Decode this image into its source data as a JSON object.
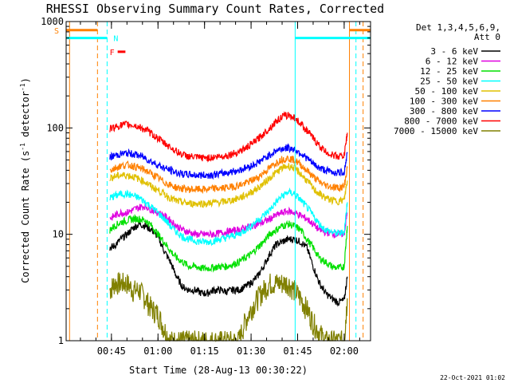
{
  "chart_data": {
    "type": "line",
    "title": "RHESSI Observing Summary Count Rates, Corrected",
    "xlabel": "Start Time (28-Aug-13 00:30:22)",
    "ylabel": "Corrected Count Rate (s⁻¹ detector⁻¹)",
    "ylabel_main": "Corrected Count Rate (s",
    "ylabel_sup1": "-1",
    "ylabel_mid": " detector",
    "ylabel_sup2": "-1",
    "ylabel_end": ")",
    "y_scale": "log",
    "ylim": [
      1,
      1000
    ],
    "xlim_minutes": [
      30.4,
      128.5
    ],
    "x_ticks": [
      {
        "label": "00:45",
        "minutes": 45
      },
      {
        "label": "01:00",
        "minutes": 60
      },
      {
        "label": "01:15",
        "minutes": 75
      },
      {
        "label": "01:30",
        "minutes": 90
      },
      {
        "label": "01:45",
        "minutes": 105
      },
      {
        "label": "02:00",
        "minutes": 120
      }
    ],
    "y_ticks": [
      {
        "label": "1",
        "value": 1
      },
      {
        "label": "10",
        "value": 10
      },
      {
        "label": "100",
        "value": 100
      },
      {
        "label": "1000",
        "value": 1000
      }
    ],
    "legend_header": [
      "Det 1,3,4,5,6,9,",
      "Att 0"
    ],
    "legend_position": "right",
    "series": [
      {
        "name": "3 - 6 keV",
        "color": "#000000",
        "x": [
          44.5,
          46,
          48,
          50,
          52,
          54,
          56,
          58,
          60,
          62,
          64,
          66,
          68,
          70,
          72,
          74,
          76,
          78,
          80,
          82,
          84,
          86,
          88,
          90,
          92,
          94,
          96,
          98,
          100,
          102,
          104,
          106,
          108,
          110,
          112,
          114,
          116,
          118,
          120,
          121
        ],
        "y": [
          7.5,
          7.8,
          9,
          10,
          11.5,
          12.5,
          12,
          11,
          9.5,
          7,
          5.5,
          4,
          3.2,
          3,
          3,
          2.8,
          2.8,
          3,
          3,
          2.9,
          3,
          3,
          3.2,
          3.5,
          4,
          5,
          6.5,
          8,
          8.5,
          9,
          9,
          8.5,
          7.5,
          5,
          3.5,
          2.8,
          2.5,
          2.3,
          2.4,
          4
        ]
      },
      {
        "name": "6 - 12 keV",
        "color": "#e000e0",
        "x": [
          44.5,
          46,
          48,
          50,
          52,
          54,
          56,
          58,
          60,
          62,
          64,
          66,
          68,
          70,
          72,
          74,
          76,
          78,
          80,
          82,
          84,
          86,
          88,
          90,
          92,
          94,
          96,
          98,
          100,
          102,
          104,
          106,
          108,
          110,
          112,
          114,
          116,
          118,
          120,
          121
        ],
        "y": [
          14,
          15,
          16,
          16,
          17,
          18,
          18.5,
          17,
          16,
          15,
          13.5,
          12,
          11,
          10.5,
          10,
          10,
          10,
          10,
          10.3,
          10.5,
          10.8,
          11,
          11.5,
          12,
          12.5,
          13,
          14,
          15,
          16,
          16.5,
          16,
          15,
          14,
          12.5,
          11,
          10.5,
          10.2,
          10,
          10.2,
          16
        ]
      },
      {
        "name": "12 - 25 keV",
        "color": "#00e000",
        "x": [
          44.5,
          46,
          48,
          50,
          52,
          54,
          56,
          58,
          60,
          62,
          64,
          66,
          68,
          70,
          72,
          74,
          76,
          78,
          80,
          82,
          84,
          86,
          88,
          90,
          92,
          94,
          96,
          98,
          100,
          102,
          104,
          106,
          108,
          110,
          112,
          114,
          116,
          118,
          120,
          121
        ],
        "y": [
          11,
          12,
          13,
          13.5,
          14,
          14,
          13.5,
          12,
          10,
          8.5,
          7,
          6,
          5.5,
          5,
          5,
          4.8,
          4.8,
          4.9,
          5,
          5,
          5.2,
          5.5,
          6,
          6.5,
          7.5,
          8.5,
          10,
          11,
          12,
          12.5,
          12,
          11,
          9,
          7.5,
          6,
          5.5,
          5,
          4.8,
          5,
          12
        ]
      },
      {
        "name": "25 - 50 keV",
        "color": "#00ffff",
        "x": [
          44.5,
          46,
          48,
          50,
          52,
          54,
          56,
          58,
          60,
          62,
          64,
          66,
          68,
          70,
          72,
          74,
          76,
          78,
          80,
          82,
          84,
          86,
          88,
          90,
          92,
          94,
          96,
          98,
          100,
          102,
          104,
          106,
          108,
          110,
          112,
          114,
          116,
          118,
          120,
          121
        ],
        "y": [
          22,
          23,
          24,
          24,
          23,
          22,
          20,
          18,
          16,
          14,
          12,
          10.5,
          9.5,
          9,
          8.7,
          8.5,
          8.5,
          8.7,
          9,
          9.3,
          9.7,
          10,
          11,
          12,
          13.5,
          15,
          17,
          20,
          23,
          25,
          24,
          21,
          18,
          15,
          12.5,
          11,
          10.5,
          10.2,
          10.5,
          20
        ]
      },
      {
        "name": "50 - 100 keV",
        "color": "#e0c000",
        "x": [
          44.5,
          46,
          48,
          50,
          52,
          54,
          56,
          58,
          60,
          62,
          64,
          66,
          68,
          70,
          72,
          74,
          76,
          78,
          80,
          82,
          84,
          86,
          88,
          90,
          92,
          94,
          96,
          98,
          100,
          102,
          104,
          106,
          108,
          110,
          112,
          114,
          116,
          118,
          120,
          121
        ],
        "y": [
          34,
          35,
          36,
          36,
          35,
          33,
          31,
          28,
          26,
          24,
          22,
          20.5,
          20,
          19.5,
          19.5,
          19.5,
          19.5,
          20,
          20,
          20.5,
          21,
          22,
          23,
          25,
          27,
          30,
          34,
          38,
          42,
          44,
          42,
          37,
          32,
          27,
          24,
          22,
          21,
          20.5,
          21,
          32
        ]
      },
      {
        "name": "100 - 300 keV",
        "color": "#ff8000",
        "x": [
          44.5,
          46,
          48,
          50,
          52,
          54,
          56,
          58,
          60,
          62,
          64,
          66,
          68,
          70,
          72,
          74,
          76,
          78,
          80,
          82,
          84,
          86,
          88,
          90,
          92,
          94,
          96,
          98,
          100,
          102,
          104,
          106,
          108,
          110,
          112,
          114,
          116,
          118,
          120,
          121
        ],
        "y": [
          40,
          42,
          44,
          45,
          44,
          42,
          40,
          37,
          34,
          31,
          29,
          27.5,
          27,
          26.5,
          26.5,
          26.5,
          26.5,
          27,
          27,
          27.5,
          28,
          29,
          30,
          32,
          34,
          38,
          42,
          47,
          51,
          52,
          50,
          45,
          40,
          35,
          31,
          29,
          28,
          27.5,
          28,
          42
        ]
      },
      {
        "name": "300 - 800 keV",
        "color": "#0000ff",
        "x": [
          44.5,
          46,
          48,
          50,
          52,
          54,
          56,
          58,
          60,
          62,
          64,
          66,
          68,
          70,
          72,
          74,
          76,
          78,
          80,
          82,
          84,
          86,
          88,
          90,
          92,
          94,
          96,
          98,
          100,
          102,
          104,
          106,
          108,
          110,
          112,
          114,
          116,
          118,
          120,
          121
        ],
        "y": [
          53,
          55,
          57,
          58,
          57,
          55,
          52,
          48,
          45,
          42,
          40,
          38,
          37,
          36.5,
          36,
          36,
          36,
          36.5,
          37,
          38,
          39,
          40,
          42,
          44,
          47,
          51,
          56,
          61,
          64,
          65,
          63,
          58,
          52,
          46,
          42,
          40,
          38.5,
          38,
          38.5,
          58
        ]
      },
      {
        "name": "800 - 7000 keV",
        "color": "#ff0000",
        "x": [
          44.5,
          46,
          48,
          50,
          52,
          54,
          56,
          58,
          60,
          62,
          64,
          66,
          68,
          70,
          72,
          74,
          76,
          78,
          80,
          82,
          84,
          86,
          88,
          90,
          92,
          94,
          96,
          98,
          100,
          102,
          104,
          106,
          108,
          110,
          112,
          114,
          116,
          118,
          120,
          121
        ],
        "y": [
          98,
          102,
          106,
          108,
          106,
          102,
          96,
          88,
          80,
          72,
          66,
          60,
          56,
          54,
          53,
          52.5,
          52.5,
          53,
          54,
          55,
          57,
          60,
          64,
          70,
          78,
          88,
          100,
          115,
          128,
          132,
          125,
          110,
          95,
          80,
          68,
          60,
          56,
          54,
          55,
          90
        ]
      },
      {
        "name": "7000 - 15000 keV",
        "color": "#808000",
        "x": [
          44.5,
          46,
          48,
          50,
          52,
          54,
          56,
          58,
          60,
          62,
          64,
          66,
          68,
          70,
          72,
          74,
          76,
          78,
          80,
          82,
          84,
          86,
          88,
          90,
          92,
          94,
          96,
          98,
          100,
          102,
          104,
          106,
          108,
          110,
          112,
          114,
          116,
          118,
          120,
          121
        ],
        "y": [
          3,
          3.5,
          3.5,
          3.5,
          3,
          3,
          2.5,
          2,
          1.8,
          1.3,
          1,
          1,
          1,
          1,
          1,
          1,
          1,
          1,
          1,
          1,
          1,
          1,
          1.5,
          2,
          2.5,
          3,
          3.5,
          3.5,
          3.5,
          3.5,
          3,
          2.5,
          2,
          1.5,
          1.2,
          1,
          1,
          1,
          1,
          2.5
        ]
      }
    ],
    "attenuator_states": [
      {
        "label": "S",
        "color": "#ff8000",
        "segments": [
          [
            30.4,
            40.5
          ],
          [
            121.7,
            128.5
          ]
        ],
        "level": 830
      },
      {
        "label": "N",
        "color": "#00ffff",
        "segments": [
          [
            30.4,
            43.6
          ],
          [
            104.2,
            128.5
          ]
        ],
        "level": 700
      },
      {
        "label": "F",
        "color": "#ff0000",
        "segments": [
          [
            47.0,
            49.5
          ]
        ],
        "level": 520
      }
    ],
    "vertical_markers": [
      {
        "minutes": 31.5,
        "color": "#ff8000",
        "style": "solid"
      },
      {
        "minutes": 40.5,
        "color": "#ff8000",
        "style": "dashed"
      },
      {
        "minutes": 43.6,
        "color": "#00ffff",
        "style": "dashed"
      },
      {
        "minutes": 104.2,
        "color": "#00ffff",
        "style": "solid"
      },
      {
        "minutes": 121.7,
        "color": "#ff8000",
        "style": "solid"
      },
      {
        "minutes": 123.8,
        "color": "#00ffff",
        "style": "dashed"
      },
      {
        "minutes": 126.1,
        "color": "#ff8000",
        "style": "dashed"
      }
    ]
  },
  "footer": {
    "date_stamp": "22-Oct-2021 01:02"
  }
}
